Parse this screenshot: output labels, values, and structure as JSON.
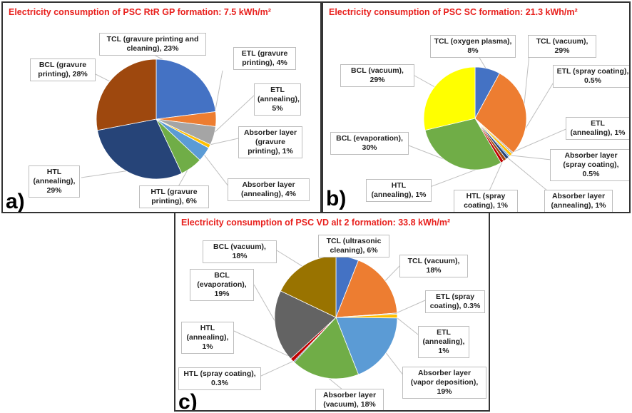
{
  "colors": {
    "title": "#e8201d"
  },
  "chart_data": [
    {
      "type": "pie",
      "panel": "a)",
      "title": "Electricity consumption of PSC RtR GP formation: 7.5 kWh/m²",
      "series": [
        {
          "labels": [
            "TCL (gravure printing and cleaning), 23%",
            "ETL (gravure printing), 4%",
            "ETL (annealing), 5%",
            "Absorber layer (gravure printing), 1%",
            "Absorber layer (annealing), 4%",
            "HTL (gravure printing), 6%",
            "HTL (annealing), 29%",
            "BCL (gravure printing), 28%"
          ],
          "values": [
            23,
            4,
            5,
            1,
            4,
            6,
            29,
            28
          ],
          "colors": [
            "#4472c4",
            "#ed7d31",
            "#a5a5a5",
            "#ffc000",
            "#5b9bd5",
            "#70ad47",
            "#264478",
            "#9e480e"
          ]
        }
      ]
    },
    {
      "type": "pie",
      "panel": "b)",
      "title": "Electricity consumption of PSC SC formation: 21.3 kWh/m²",
      "series": [
        {
          "labels": [
            "TCL (oxygen plasma), 8%",
            "TCL (vacuum), 29%",
            "ETL (spray coating), 0.5%",
            "ETL (annealing), 1%",
            "Absorber layer (spray coating), 0.5%",
            "Absorber layer (annealing), 1%",
            "HTL (spray coating), 1%",
            "HTL (annealing), 1%",
            "BCL (evaporation), 30%",
            "BCL (vacuum), 29%"
          ],
          "values": [
            8,
            29,
            0.5,
            1,
            0.5,
            1,
            1,
            1,
            30,
            29
          ],
          "colors": [
            "#4472c4",
            "#ed7d31",
            "#a5a5a5",
            "#ffc000",
            "#5b9bd5",
            "#264478",
            "#9e480e",
            "#c00000",
            "#70ad47",
            "#ffff00"
          ]
        }
      ]
    },
    {
      "type": "pie",
      "panel": "c)",
      "title": "Electricity consumption of PSC VD alt 2 formation: 33.8 kWh/m²",
      "series": [
        {
          "labels": [
            "TCL (ultrasonic cleaning), 6%",
            "TCL (vacuum), 18%",
            "ETL (spray coating), 0.3%",
            "ETL (annealing), 1%",
            "Absorber layer (vapor deposition), 19%",
            "Absorber layer (vacuum), 18%",
            "HTL (spray coating), 0.3%",
            "HTL (annealing), 1%",
            "BCL (evaporation), 19%",
            "BCL (vacuum), 18%"
          ],
          "values": [
            6,
            18,
            0.3,
            1,
            19,
            18,
            0.3,
            1,
            19,
            18
          ],
          "colors": [
            "#4472c4",
            "#ed7d31",
            "#a5a5a5",
            "#ffc000",
            "#5b9bd5",
            "#70ad47",
            "#264478",
            "#c00000",
            "#636363",
            "#997300"
          ]
        }
      ]
    }
  ]
}
